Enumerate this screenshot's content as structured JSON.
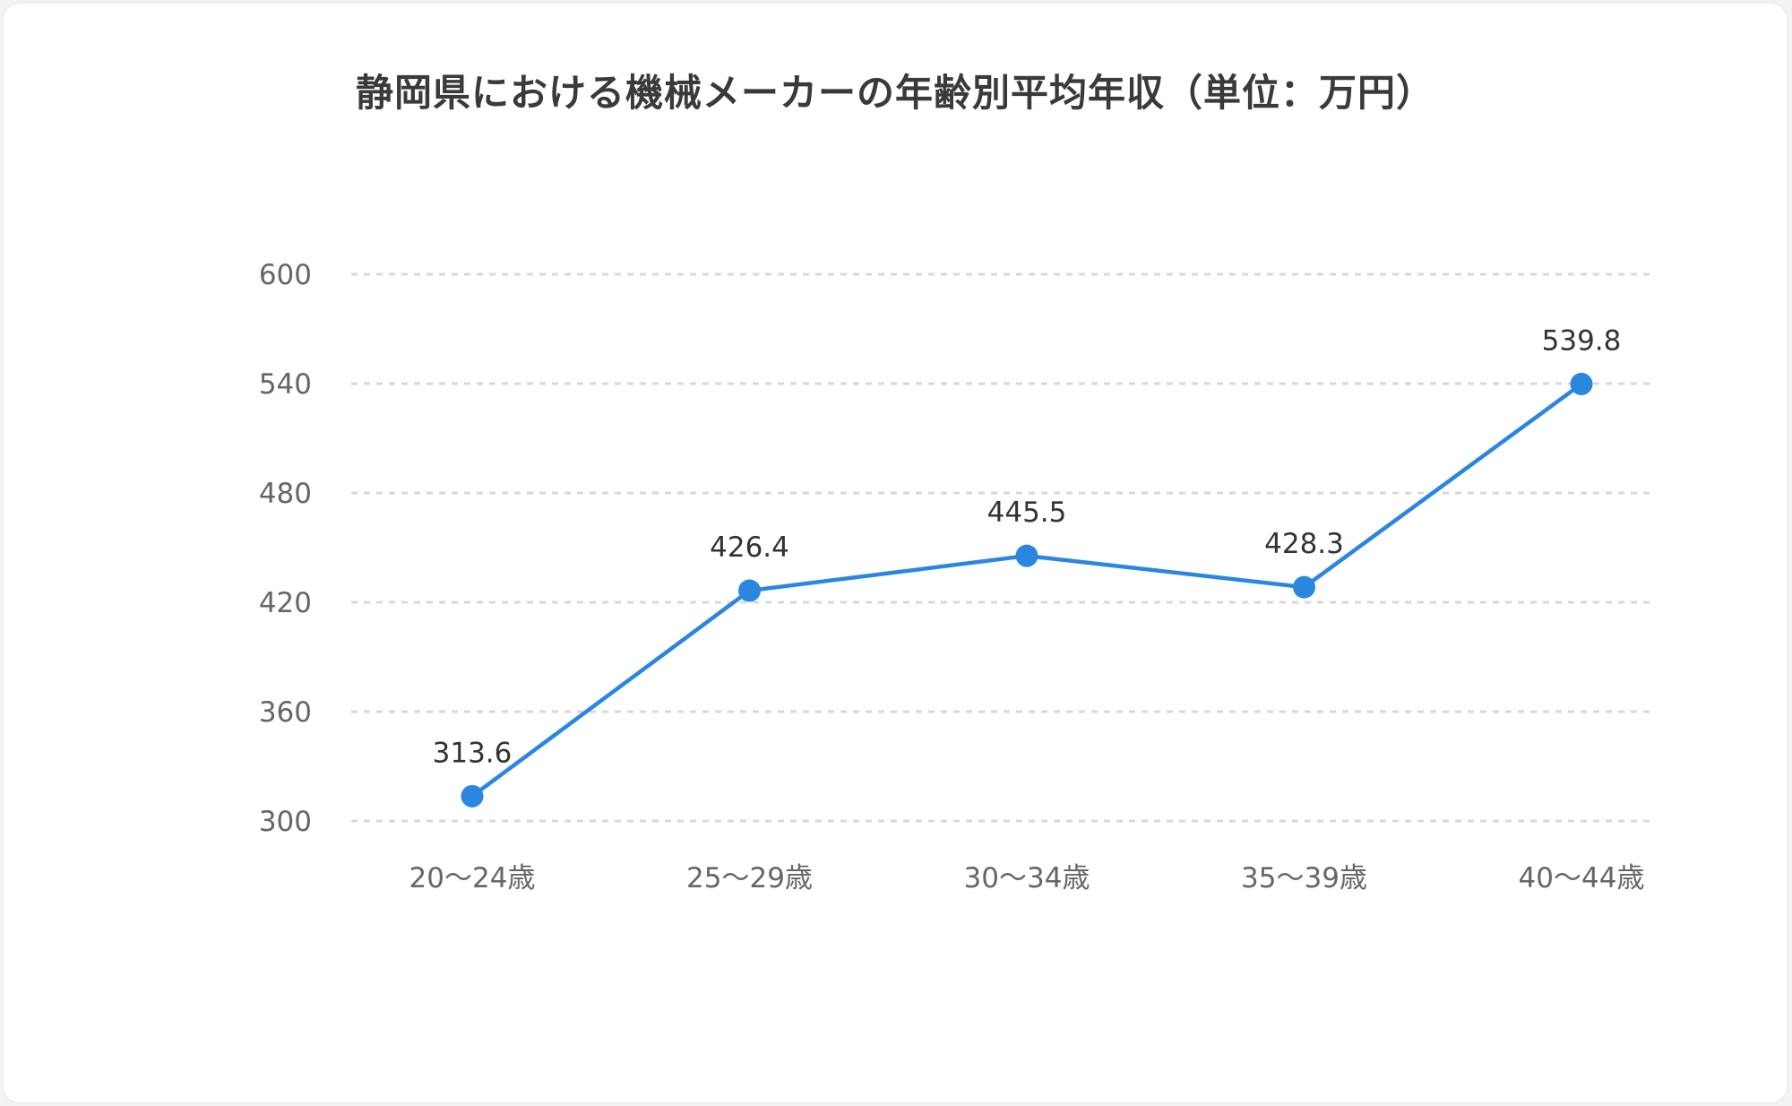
{
  "chart_data": {
    "type": "line",
    "title": "静岡県における機械メーカーの年齢別平均年収（単位：万円）",
    "xlabel": "",
    "ylabel": "",
    "categories": [
      "20〜24歳",
      "25〜29歳",
      "30〜34歳",
      "35〜39歳",
      "40〜44歳"
    ],
    "series": [
      {
        "values": [
          313.6,
          426.4,
          445.5,
          428.3,
          539.8
        ]
      }
    ],
    "ylim": [
      300,
      600
    ],
    "yticks": [
      300,
      360,
      420,
      480,
      540,
      600
    ],
    "grid": true,
    "grid_style": "dashed",
    "line_color": "#2b86e0",
    "grid_color": "#d9d9d9",
    "data_labels": true
  }
}
